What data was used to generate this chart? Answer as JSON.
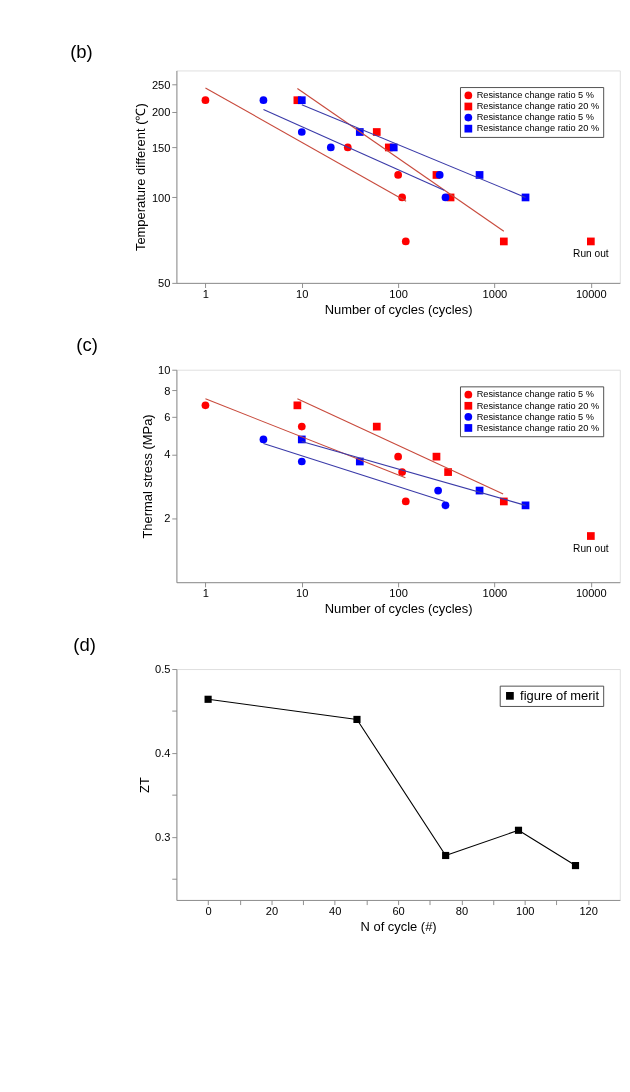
{
  "chart_data": [
    {
      "type": "scatter",
      "title": "(b)",
      "xlabel": "Number of cycles (cycles)",
      "ylabel": "Temperature different (℃)",
      "log": "xy",
      "legend": "top right",
      "xlim": [
        0.5,
        20000
      ],
      "xticks": [
        1,
        10,
        100,
        1000,
        10000
      ],
      "ylim": [
        50,
        280
      ],
      "yticks": [
        50,
        100,
        150,
        200,
        250
      ],
      "series": [
        {
          "name": "Resistance change ratio 5 %",
          "type": "scatter",
          "marker": "circle",
          "color": "#ff0000",
          "x": [
            1,
            30,
            100,
            110,
            120
          ],
          "values": [
            220,
            150,
            120,
            100,
            70
          ]
        },
        {
          "name": "Resistance change ratio 20 %",
          "type": "scatter",
          "marker": "square",
          "color": "#ff0000",
          "x": [
            9,
            60,
            80,
            250,
            350,
            1250,
            10000
          ],
          "values": [
            220,
            170,
            150,
            120,
            100,
            70,
            70
          ]
        },
        {
          "name": "Resistance change ratio 5 %",
          "type": "scatter",
          "marker": "circle",
          "color": "#0000ff",
          "x": [
            4,
            10,
            20,
            270,
            310
          ],
          "values": [
            220,
            170,
            150,
            120,
            100
          ]
        },
        {
          "name": "Resistance change ratio 20 %",
          "type": "scatter",
          "marker": "square",
          "color": "#0000ff",
          "x": [
            10,
            40,
            90,
            700,
            2100
          ],
          "values": [
            220,
            170,
            150,
            120,
            100
          ]
        },
        {
          "type": "line",
          "color": "#c84a3c",
          "x": [
            1,
            121
          ],
          "values": [
            243,
            97
          ]
        },
        {
          "type": "line",
          "color": "#c84a3c",
          "x": [
            9,
            1250
          ],
          "values": [
            242,
            76
          ]
        },
        {
          "type": "line",
          "color": "#3a3aa8",
          "x": [
            4,
            300
          ],
          "values": [
            204,
            106
          ]
        },
        {
          "type": "line",
          "color": "#3a3aa8",
          "x": [
            10,
            2100
          ],
          "values": [
            212,
            100
          ]
        }
      ],
      "annotations": [
        {
          "text": "Run out",
          "x": 10000,
          "y": 70
        }
      ]
    },
    {
      "type": "scatter",
      "title": "(c)",
      "xlabel": "Number of cycles (cycles)",
      "ylabel": "Thermal stress (MPa)",
      "log": "xy",
      "legend": "top right",
      "xlim": [
        0.5,
        20000
      ],
      "xticks": [
        1,
        10,
        100,
        1000,
        10000
      ],
      "ylim": [
        1,
        10
      ],
      "yticks": [
        2,
        4,
        6,
        8,
        10
      ],
      "series": [
        {
          "name": "Resistance change ratio 5 %",
          "type": "scatter",
          "marker": "circle",
          "color": "#ff0000",
          "x": [
            1,
            10,
            100,
            110,
            120
          ],
          "values": [
            6.8,
            5.4,
            3.9,
            3.3,
            2.4
          ]
        },
        {
          "name": "Resistance change ratio 20 %",
          "type": "scatter",
          "marker": "square",
          "color": "#ff0000",
          "x": [
            9,
            60,
            250,
            330,
            1250,
            10000
          ],
          "values": [
            6.8,
            5.4,
            3.9,
            3.3,
            2.4,
            1.65
          ]
        },
        {
          "name": "Resistance change ratio 5 %",
          "type": "scatter",
          "marker": "circle",
          "color": "#0000ff",
          "x": [
            4,
            10,
            260,
            310
          ],
          "values": [
            4.7,
            3.7,
            2.7,
            2.3
          ]
        },
        {
          "name": "Resistance change ratio 20 %",
          "type": "scatter",
          "marker": "square",
          "color": "#0000ff",
          "x": [
            10,
            40,
            700,
            2100
          ],
          "values": [
            4.7,
            3.7,
            2.7,
            2.3
          ]
        },
        {
          "type": "line",
          "color": "#c84a3c",
          "x": [
            1,
            119
          ],
          "values": [
            7.3,
            3.1
          ]
        },
        {
          "type": "line",
          "color": "#c84a3c",
          "x": [
            9,
            1230
          ],
          "values": [
            7.3,
            2.6
          ]
        },
        {
          "type": "line",
          "color": "#3a3aa8",
          "x": [
            4,
            305
          ],
          "values": [
            4.5,
            2.4
          ]
        },
        {
          "type": "line",
          "color": "#3a3aa8",
          "x": [
            10,
            2100
          ],
          "values": [
            4.6,
            2.3
          ]
        }
      ],
      "annotations": [
        {
          "text": "Run out",
          "x": 10000,
          "y": 1.65
        }
      ]
    },
    {
      "type": "line",
      "title": "(d)",
      "xlabel": "N of cycle (#)",
      "ylabel": "ZT",
      "legend": "top right",
      "marker": "square",
      "xlim": [
        -10,
        130
      ],
      "xticks": [
        0,
        {
          "value": 10,
          "label": null
        },
        20,
        {
          "value": 30,
          "label": null
        },
        40,
        {
          "value": 50,
          "label": null
        },
        60,
        {
          "value": 70,
          "label": null
        },
        80,
        {
          "value": 90,
          "label": null
        },
        100,
        {
          "value": 110,
          "label": null
        },
        120
      ],
      "ylim": [
        0.225,
        0.5
      ],
      "yticks": [
        {
          "value": 0.25,
          "label": null
        },
        0.3,
        {
          "value": 0.35,
          "label": null
        },
        0.4,
        {
          "value": 0.45,
          "label": null
        },
        0.5
      ],
      "x": [
        0,
        47,
        75,
        98,
        116
      ],
      "series": [
        {
          "name": "figure of merit",
          "color": "#000000",
          "values": [
            0.464,
            0.44,
            0.278,
            0.308,
            0.266
          ]
        }
      ]
    }
  ]
}
